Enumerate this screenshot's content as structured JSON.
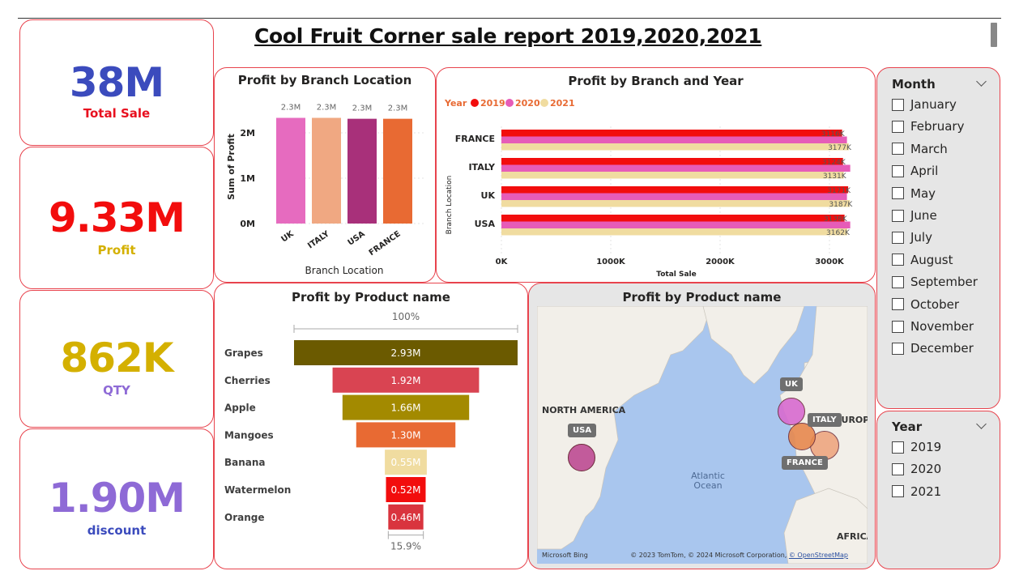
{
  "report": {
    "title": "Cool Fruit Corner sale report 2019,2020,2021"
  },
  "kpis": [
    {
      "value": "38M",
      "label": "Total Sale",
      "value_color": "#3b4bbd",
      "label_color": "#e8101f"
    },
    {
      "value": "9.33M",
      "label": "Profit",
      "value_color": "#f20d0d",
      "label_color": "#d4b000"
    },
    {
      "value": "862K",
      "label": "QTY",
      "value_color": "#d4b000",
      "label_color": "#8e6ad6"
    },
    {
      "value": "1.90M",
      "label": "discount",
      "value_color": "#8e6ad6",
      "label_color": "#3b4bbd"
    }
  ],
  "chart_data": [
    {
      "type": "bar",
      "title": "Profit by Branch Location",
      "xlabel": "Branch Location",
      "ylabel": "Sum of Profit",
      "categories": [
        "UK",
        "ITALY",
        "USA",
        "FRANCE"
      ],
      "values": [
        2.33,
        2.33,
        2.31,
        2.31
      ],
      "data_labels": [
        "2.3M",
        "2.3M",
        "2.3M",
        "2.3M"
      ],
      "y_ticks": [
        "0M",
        "1M",
        "2M"
      ],
      "ylim": [
        0,
        2.5
      ],
      "unit": "M",
      "colors": [
        "#e66bbf",
        "#f0a882",
        "#a8307a",
        "#e86a33"
      ]
    },
    {
      "type": "bar",
      "orientation": "horizontal",
      "title": "Profit by Branch and Year",
      "xlabel": "Total Sale",
      "ylabel": "Branch Location",
      "legend_title": "Year",
      "legend_position": "top-left",
      "categories": [
        "FRANCE",
        "ITALY",
        "UK",
        "USA"
      ],
      "x_ticks": [
        "0K",
        "1000K",
        "2000K",
        "3000K"
      ],
      "xlim": [
        0,
        3200
      ],
      "series": [
        {
          "name": "2019",
          "color": "#f20d0d",
          "values": [
            3116,
            3124,
            3171,
            3138
          ],
          "labels": [
            "3116K",
            "3124K",
            "3171K",
            "3138K"
          ]
        },
        {
          "name": "2020",
          "color": "#e65cb8",
          "values": [
            3160,
            3190,
            3160,
            3190
          ],
          "labels": [
            "",
            "",
            "",
            ""
          ]
        },
        {
          "name": "2021",
          "color": "#f0dca0",
          "values": [
            3177,
            3131,
            3187,
            3162
          ],
          "labels": [
            "3177K",
            "3131K",
            "3187K",
            "3162K"
          ]
        }
      ]
    },
    {
      "type": "funnel",
      "title": "Profit by Product name",
      "top_percent": "100%",
      "bottom_percent": "15.9%",
      "categories": [
        "Grapes",
        "Cherries",
        "Apple",
        "Mangoes",
        "Banana",
        "Watermelon",
        "Orange"
      ],
      "values": [
        2.93,
        1.92,
        1.66,
        1.3,
        0.55,
        0.52,
        0.46
      ],
      "data_labels": [
        "2.93M",
        "1.92M",
        "1.66M",
        "1.30M",
        "0.55M",
        "0.52M",
        "0.46M"
      ],
      "colors": [
        "#6b5a00",
        "#d94452",
        "#a38a00",
        "#e86a33",
        "#f0dca0",
        "#f20d0d",
        "#d9343e"
      ]
    }
  ],
  "map": {
    "title": "Profit by Product name",
    "points": [
      {
        "tag": "USA",
        "color": "#c25b9b"
      },
      {
        "tag": "UK",
        "color": "#d86bd0"
      },
      {
        "tag": "ITALY",
        "color": "#e8894e"
      },
      {
        "tag": "FRANCE",
        "color": "#eea27a"
      }
    ],
    "labels": [
      "NORTH AMERICA",
      "EUROPE",
      "Atlantic Ocean",
      "AFRICA"
    ],
    "attribution": "© 2023 TomTom, © 2024 Microsoft Corporation,",
    "attribution_link": "© OpenStreetMap",
    "logo": "Microsoft Bing"
  },
  "slicers": {
    "month": {
      "header": "Month",
      "items": [
        "January",
        "February",
        "March",
        "April",
        "May",
        "June",
        "July",
        "August",
        "September",
        "October",
        "November",
        "December"
      ]
    },
    "year": {
      "header": "Year",
      "items": [
        "2019",
        "2020",
        "2021"
      ]
    }
  }
}
